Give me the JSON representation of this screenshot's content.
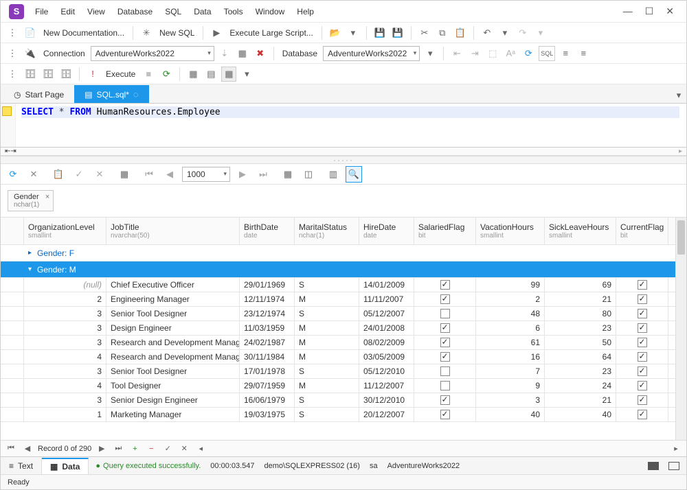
{
  "app": {
    "logo_letter": "S"
  },
  "menus": [
    "File",
    "Edit",
    "View",
    "Database",
    "SQL",
    "Data",
    "Tools",
    "Window",
    "Help"
  ],
  "win_controls": [
    "—",
    "☐",
    "✕"
  ],
  "toolbar1": {
    "new_doc": "New Documentation...",
    "new_sql": "New SQL",
    "exec_large": "Execute Large Script..."
  },
  "toolbar2": {
    "conn_label": "Connection",
    "conn_value": "AdventureWorks2022",
    "db_label": "Database",
    "db_value": "AdventureWorks2022"
  },
  "toolbar3": {
    "execute": "Execute"
  },
  "tabs": {
    "start": "Start Page",
    "sql": "SQL.sql*"
  },
  "sql": {
    "kw1": "SELECT",
    "star": "*",
    "kw2": "FROM",
    "ident": "HumanResources.Employee"
  },
  "grid_toolbar": {
    "page_size": "1000"
  },
  "group_chip": {
    "label": "Gender",
    "type": "nchar(1)"
  },
  "columns": [
    {
      "key": "org",
      "label": "OrganizationLevel",
      "type": "smallint"
    },
    {
      "key": "job",
      "label": "JobTitle",
      "type": "nvarchar(50)"
    },
    {
      "key": "birth",
      "label": "BirthDate",
      "type": "date"
    },
    {
      "key": "mar",
      "label": "MaritalStatus",
      "type": "nchar(1)"
    },
    {
      "key": "hire",
      "label": "HireDate",
      "type": "date"
    },
    {
      "key": "sal",
      "label": "SalariedFlag",
      "type": "bit"
    },
    {
      "key": "vac",
      "label": "VacationHours",
      "type": "smallint"
    },
    {
      "key": "sick",
      "label": "SickLeaveHours",
      "type": "smallint"
    },
    {
      "key": "cur",
      "label": "CurrentFlag",
      "type": "bit"
    }
  ],
  "groups": {
    "f": "Gender: F",
    "m": "Gender: M"
  },
  "rows": [
    {
      "org": "(null)",
      "null": true,
      "job": "Chief Executive Officer",
      "birth": "29/01/1969",
      "mar": "S",
      "hire": "14/01/2009",
      "sal": true,
      "vac": "99",
      "sick": "69",
      "cur": true
    },
    {
      "org": "2",
      "job": "Engineering Manager",
      "birth": "12/11/1974",
      "mar": "M",
      "hire": "11/11/2007",
      "sal": true,
      "vac": "2",
      "sick": "21",
      "cur": true
    },
    {
      "org": "3",
      "job": "Senior Tool Designer",
      "birth": "23/12/1974",
      "mar": "S",
      "hire": "05/12/2007",
      "sal": false,
      "vac": "48",
      "sick": "80",
      "cur": true
    },
    {
      "org": "3",
      "job": "Design Engineer",
      "birth": "11/03/1959",
      "mar": "M",
      "hire": "24/01/2008",
      "sal": true,
      "vac": "6",
      "sick": "23",
      "cur": true
    },
    {
      "org": "3",
      "job": "Research and Development Manager",
      "birth": "24/02/1987",
      "mar": "M",
      "hire": "08/02/2009",
      "sal": true,
      "vac": "61",
      "sick": "50",
      "cur": true
    },
    {
      "org": "4",
      "job": "Research and Development Manager",
      "birth": "30/11/1984",
      "mar": "M",
      "hire": "03/05/2009",
      "sal": true,
      "vac": "16",
      "sick": "64",
      "cur": true
    },
    {
      "org": "3",
      "job": "Senior Tool Designer",
      "birth": "17/01/1978",
      "mar": "S",
      "hire": "05/12/2010",
      "sal": false,
      "vac": "7",
      "sick": "23",
      "cur": true
    },
    {
      "org": "4",
      "job": "Tool Designer",
      "birth": "29/07/1959",
      "mar": "M",
      "hire": "11/12/2007",
      "sal": false,
      "vac": "9",
      "sick": "24",
      "cur": true
    },
    {
      "org": "3",
      "job": "Senior Design Engineer",
      "birth": "16/06/1979",
      "mar": "S",
      "hire": "30/12/2010",
      "sal": true,
      "vac": "3",
      "sick": "21",
      "cur": true
    },
    {
      "org": "1",
      "job": "Marketing Manager",
      "birth": "19/03/1975",
      "mar": "S",
      "hire": "20/12/2007",
      "sal": true,
      "vac": "40",
      "sick": "40",
      "cur": true
    }
  ],
  "nav": {
    "record": "Record 0 of 290"
  },
  "bottom_tabs": {
    "text": "Text",
    "data": "Data"
  },
  "status": {
    "ok": "Query executed successfully.",
    "time": "00:00:03.547",
    "server": "demo\\SQLEXPRESS02 (16)",
    "user": "sa",
    "db": "AdventureWorks2022"
  },
  "statusbar": {
    "ready": "Ready"
  },
  "colors": {
    "accent": "#1c97ea",
    "brand": "#8a3ab9"
  }
}
